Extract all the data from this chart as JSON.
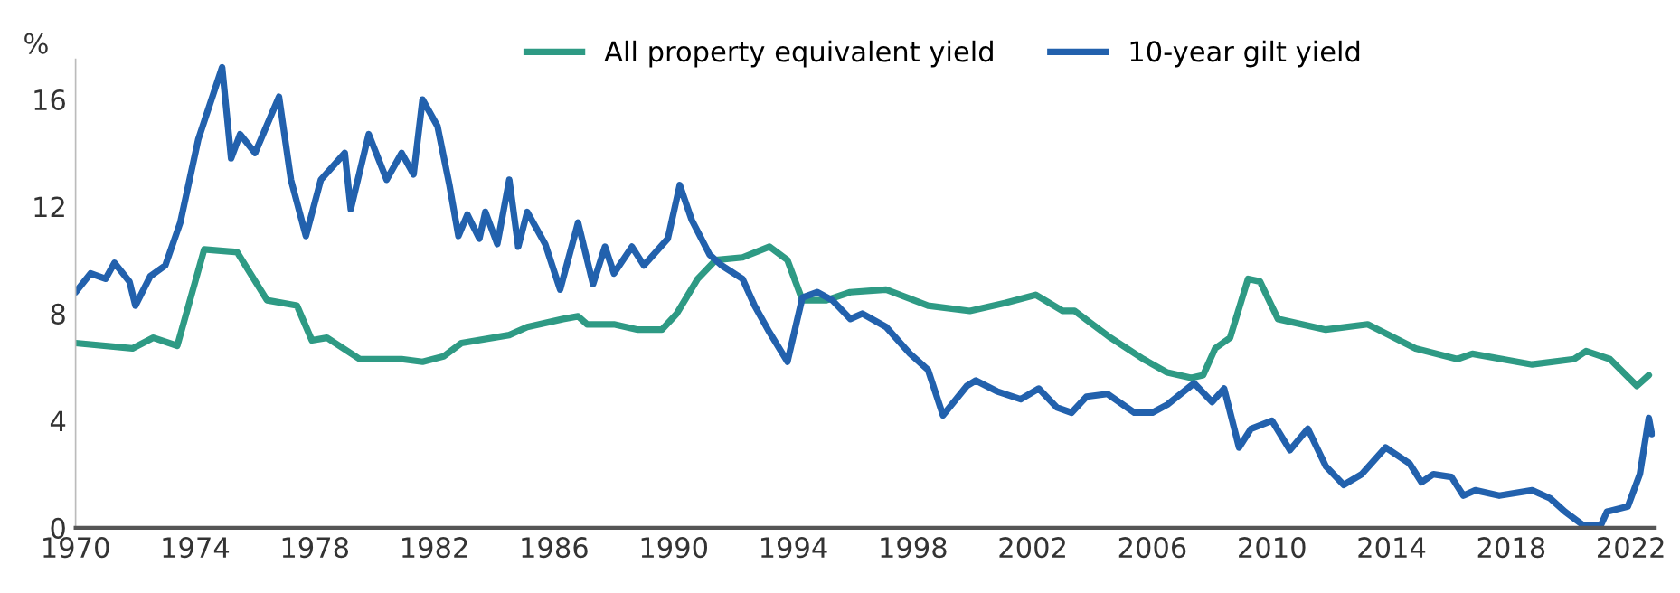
{
  "chart_data": {
    "type": "line",
    "ylabel": "%",
    "xlim": [
      1970,
      2022.8
    ],
    "ylim": [
      0,
      17.5
    ],
    "xticks": [
      1970,
      1974,
      1978,
      1982,
      1986,
      1990,
      1994,
      1998,
      2002,
      2006,
      2010,
      2014,
      2018,
      2022
    ],
    "yticks": [
      0,
      4,
      8,
      12,
      16
    ],
    "grid": false,
    "legend": "top",
    "line_style": "solid",
    "marker": "none",
    "series": [
      {
        "name": "All property equivalent yield",
        "color": "#2e9a84",
        "x": [
          1970,
          1971.9,
          1972.6,
          1973.4,
          1974.3,
          1975.4,
          1976.4,
          1977.4,
          1977.9,
          1978.4,
          1979.5,
          1980.9,
          1981.6,
          1982.3,
          1982.9,
          1984.5,
          1985.1,
          1986.3,
          1986.8,
          1987.1,
          1988.0,
          1988.8,
          1989.6,
          1990.1,
          1990.8,
          1991.4,
          1992.3,
          1993.2,
          1993.8,
          1994.3,
          1995.1,
          1995.9,
          1997.1,
          1998.5,
          1999.9,
          2001.1,
          2002.1,
          2003.0,
          2003.4,
          2004.6,
          2005.7,
          2006.5,
          2007.3,
          2007.7,
          2008.1,
          2008.6,
          2009.2,
          2009.6,
          2010.2,
          2011.8,
          2013.2,
          2014.8,
          2016.2,
          2016.7,
          2018.7,
          2020.1,
          2020.5,
          2021.3,
          2022.2,
          2022.6
        ],
        "values": [
          6.9,
          6.7,
          7.1,
          6.8,
          10.4,
          10.3,
          8.5,
          8.3,
          7.0,
          7.1,
          6.3,
          6.3,
          6.2,
          6.4,
          6.9,
          7.2,
          7.5,
          7.8,
          7.9,
          7.6,
          7.6,
          7.4,
          7.4,
          8.0,
          9.3,
          10.0,
          10.1,
          10.5,
          10.0,
          8.5,
          8.5,
          8.8,
          8.9,
          8.3,
          8.1,
          8.4,
          8.7,
          8.1,
          8.1,
          7.1,
          6.3,
          5.8,
          5.6,
          5.7,
          6.7,
          7.1,
          9.3,
          9.2,
          7.8,
          7.4,
          7.6,
          6.7,
          6.3,
          6.5,
          6.1,
          6.3,
          6.6,
          6.3,
          5.3,
          5.7
        ]
      },
      {
        "name": "10-year gilt yield",
        "color": "#2261ad",
        "x": [
          1970,
          1970.5,
          1971.0,
          1971.3,
          1971.8,
          1972.0,
          1972.5,
          1973.0,
          1973.5,
          1974.1,
          1974.9,
          1975.2,
          1975.5,
          1976.0,
          1976.8,
          1977.2,
          1977.7,
          1978.2,
          1979.0,
          1979.2,
          1979.8,
          1980.4,
          1980.9,
          1981.3,
          1981.6,
          1982.1,
          1982.5,
          1982.8,
          1983.1,
          1983.5,
          1983.7,
          1984.1,
          1984.5,
          1984.8,
          1985.1,
          1985.7,
          1986.2,
          1986.8,
          1987.3,
          1987.7,
          1988.0,
          1988.6,
          1989.0,
          1989.8,
          1990.2,
          1990.6,
          1991.2,
          1991.6,
          1992.3,
          1992.7,
          1993.2,
          1993.8,
          1994.3,
          1994.8,
          1995.3,
          1995.9,
          1996.3,
          1997.1,
          1997.9,
          1998.5,
          1999.0,
          1999.8,
          2000.1,
          2000.8,
          2001.6,
          2002.2,
          2002.8,
          2003.3,
          2003.8,
          2004.5,
          2005.4,
          2006.0,
          2006.5,
          2007.4,
          2008.0,
          2008.4,
          2008.9,
          2009.3,
          2010.0,
          2010.6,
          2011.2,
          2011.8,
          2012.4,
          2013.0,
          2013.8,
          2014.6,
          2015.0,
          2015.4,
          2016.0,
          2016.4,
          2016.8,
          2017.6,
          2018.7,
          2019.3,
          2019.8,
          2020.4,
          2021.0,
          2021.2,
          2021.9,
          2022.3,
          2022.6,
          2022.7
        ],
        "values": [
          8.8,
          9.5,
          9.3,
          9.9,
          9.2,
          8.3,
          9.4,
          9.8,
          11.4,
          14.5,
          17.2,
          13.8,
          14.7,
          14.0,
          16.1,
          13.0,
          10.9,
          13.0,
          14.0,
          11.9,
          14.7,
          13.0,
          14.0,
          13.2,
          16.0,
          15.0,
          12.8,
          10.9,
          11.7,
          10.8,
          11.8,
          10.6,
          13.0,
          10.5,
          11.8,
          10.6,
          8.9,
          11.4,
          9.1,
          10.5,
          9.5,
          10.5,
          9.8,
          10.8,
          12.8,
          11.5,
          10.2,
          9.8,
          9.3,
          8.3,
          7.3,
          6.2,
          8.6,
          8.8,
          8.5,
          7.8,
          8.0,
          7.5,
          6.5,
          5.9,
          4.2,
          5.3,
          5.5,
          5.1,
          4.8,
          5.2,
          4.5,
          4.3,
          4.9,
          5.0,
          4.3,
          4.3,
          4.6,
          5.4,
          4.7,
          5.2,
          3.0,
          3.7,
          4.0,
          2.9,
          3.7,
          2.3,
          1.6,
          2.0,
          3.0,
          2.4,
          1.7,
          2.0,
          1.9,
          1.2,
          1.4,
          1.2,
          1.4,
          1.1,
          0.6,
          0.1,
          0.1,
          0.6,
          0.8,
          2.0,
          4.1,
          3.5
        ]
      }
    ]
  }
}
